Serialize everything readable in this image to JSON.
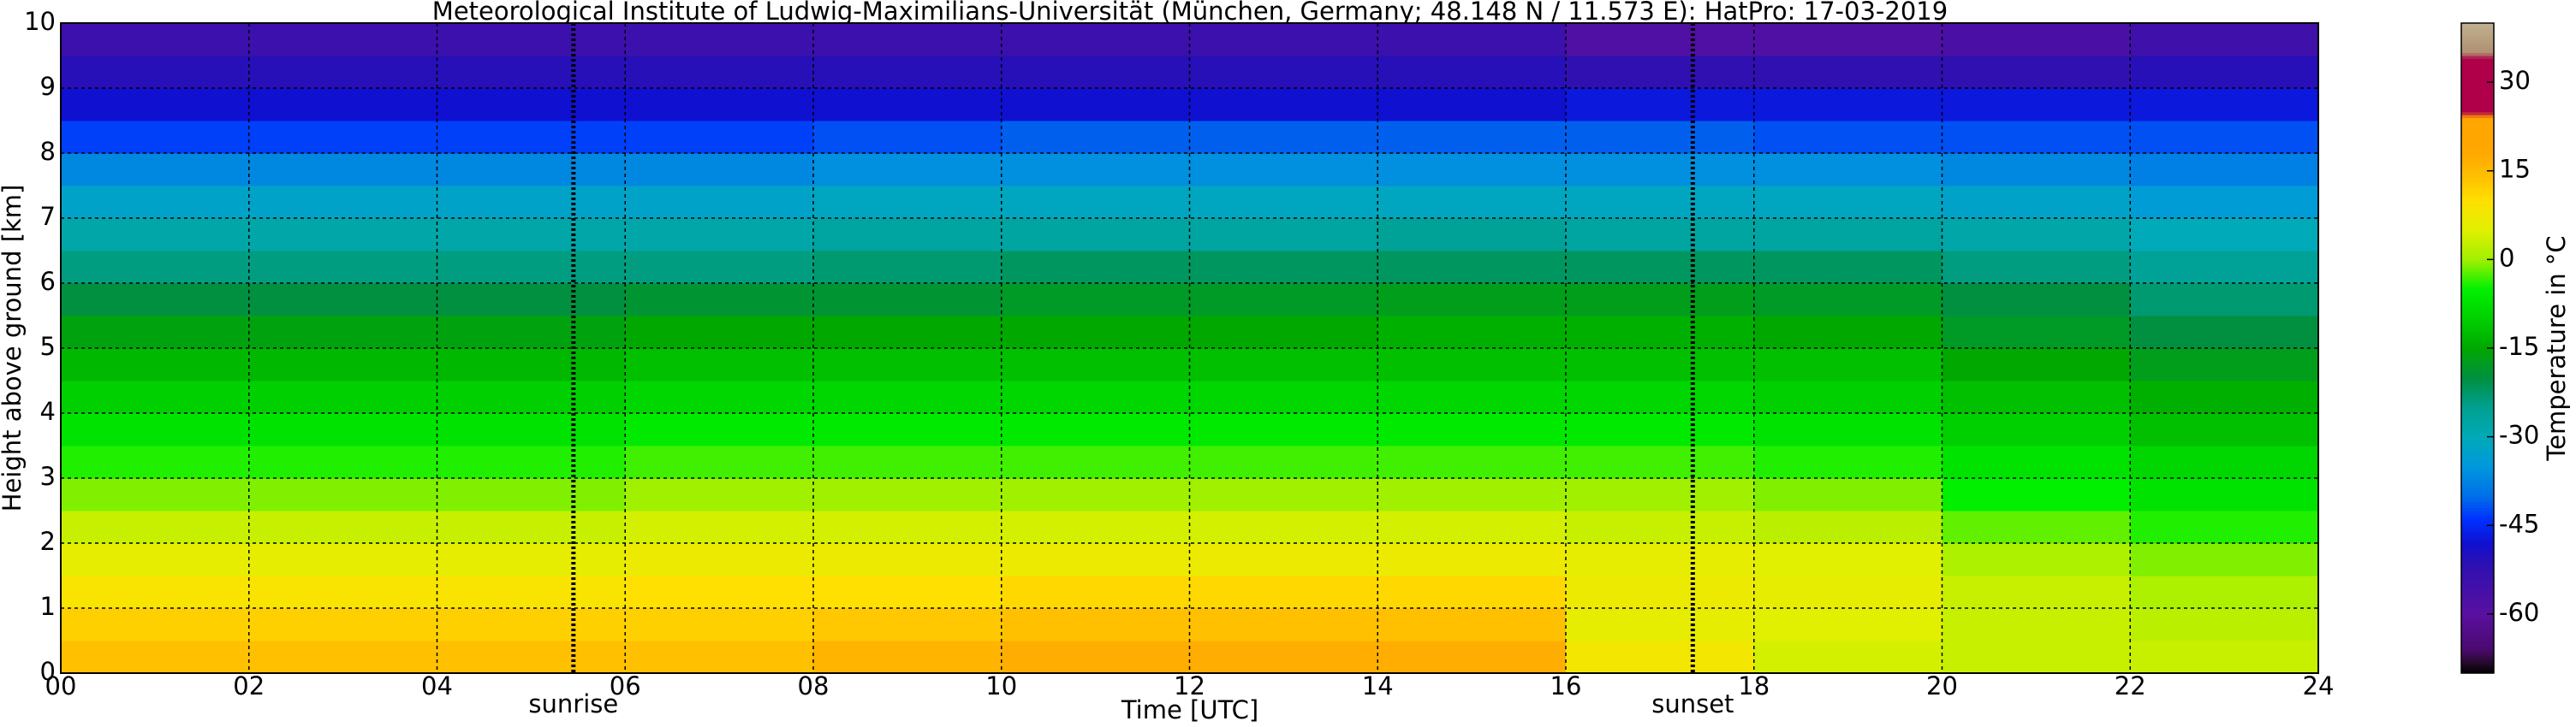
{
  "chart_data": {
    "type": "heatmap",
    "title": "Meteorological Institute of Ludwig-Maximilians-Universität (München, Germany; 48.148 N / 11.573 E):    HatPro: 17-03-2019",
    "xlabel": "Time [UTC]",
    "ylabel": "Height above ground [km]",
    "colorbar_label": "Temperature in °C",
    "x": [
      0,
      2,
      4,
      6,
      8,
      10,
      12,
      14,
      16,
      18,
      20,
      22,
      24
    ],
    "y": [
      0,
      0.5,
      1,
      1.5,
      2,
      2.5,
      3,
      3.5,
      4,
      4.5,
      5,
      5.5,
      6,
      6.5,
      7,
      7.5,
      8,
      8.5,
      9,
      9.5,
      10
    ],
    "z": [
      [
        14,
        12,
        9,
        6,
        3,
        -1,
        -4,
        -7,
        -10,
        -13,
        -16,
        -20,
        -24,
        -28,
        -32,
        -37,
        -43,
        -48,
        -51,
        -54
      ],
      [
        14,
        12,
        9,
        6,
        3,
        -1,
        -4,
        -7,
        -10,
        -13,
        -16,
        -20,
        -24,
        -28,
        -32,
        -37,
        -43,
        -48,
        -51,
        -54
      ],
      [
        14,
        12,
        9,
        6,
        3,
        -1,
        -4,
        -7,
        -10,
        -13,
        -16,
        -20,
        -24,
        -28,
        -32,
        -37,
        -43,
        -48,
        -51,
        -54
      ],
      [
        14,
        12,
        10,
        7,
        4,
        0,
        -3,
        -6,
        -9,
        -12,
        -15,
        -19,
        -24,
        -28,
        -32,
        -37,
        -43,
        -48,
        -51,
        -54
      ],
      [
        16,
        13,
        10,
        7,
        4,
        0,
        -3,
        -6,
        -9,
        -12,
        -15,
        -19,
        -23,
        -27,
        -31,
        -36,
        -42,
        -48,
        -51,
        -54
      ],
      [
        17,
        14,
        11,
        7,
        4,
        0,
        -3,
        -6,
        -9,
        -12,
        -15,
        -18,
        -22,
        -27,
        -31,
        -36,
        -41,
        -48,
        -51,
        -54
      ],
      [
        17,
        14,
        11,
        7,
        4,
        0,
        -3,
        -6,
        -9,
        -12,
        -15,
        -18,
        -22,
        -27,
        -31,
        -36,
        -41,
        -48,
        -51,
        -54
      ],
      [
        17,
        14,
        11,
        7,
        4,
        0,
        -3,
        -6,
        -9,
        -12,
        -14,
        -17,
        -22,
        -26,
        -31,
        -36,
        -41,
        -48,
        -51,
        -54
      ],
      [
        8,
        6,
        7,
        6,
        3,
        0,
        -3,
        -6,
        -9,
        -12,
        -14,
        -17,
        -22,
        -27,
        -31,
        -36,
        -41,
        -47,
        -52,
        -58
      ],
      [
        4,
        5,
        6,
        5,
        2,
        -1,
        -4,
        -7,
        -10,
        -12,
        -15,
        -18,
        -22,
        -27,
        -31,
        -36,
        -42,
        -47,
        -52,
        -58
      ],
      [
        3,
        3,
        3,
        1,
        -2,
        -5,
        -7,
        -10,
        -12,
        -15,
        -18,
        -20,
        -24,
        -28,
        -32,
        -37,
        -42,
        -47,
        -52,
        -57
      ],
      [
        3,
        2,
        1,
        -1,
        -4,
        -7,
        -9,
        -12,
        -14,
        -17,
        -20,
        -23,
        -26,
        -30,
        -34,
        -38,
        -42,
        -47,
        -51,
        -55
      ]
    ],
    "xlim": [
      0,
      24
    ],
    "ylim": [
      0,
      10
    ],
    "xticks": [
      {
        "value": 0,
        "label": "00"
      },
      {
        "value": 2,
        "label": "02"
      },
      {
        "value": 4,
        "label": "04"
      },
      {
        "value": 6,
        "label": "06"
      },
      {
        "value": 8,
        "label": "08"
      },
      {
        "value": 10,
        "label": "10"
      },
      {
        "value": 12,
        "label": "12"
      },
      {
        "value": 14,
        "label": "14"
      },
      {
        "value": 16,
        "label": "16"
      },
      {
        "value": 18,
        "label": "18"
      },
      {
        "value": 20,
        "label": "20"
      },
      {
        "value": 22,
        "label": "22"
      },
      {
        "value": 24,
        "label": "24"
      }
    ],
    "yticks": [
      0,
      1,
      2,
      3,
      4,
      5,
      6,
      7,
      8,
      9,
      10
    ],
    "clim": [
      -70,
      40
    ],
    "cticks": [
      30,
      15,
      0,
      -15,
      -30,
      -45,
      -60
    ],
    "grid": true,
    "colormap": [
      [
        -70,
        "#000000"
      ],
      [
        -68,
        "#2a0a30"
      ],
      [
        -66,
        "#4a0a70"
      ],
      [
        -60,
        "#5a10a0"
      ],
      [
        -52,
        "#3010b0"
      ],
      [
        -48,
        "#1010d0"
      ],
      [
        -44,
        "#0030ff"
      ],
      [
        -40,
        "#0070e8"
      ],
      [
        -35,
        "#0098dd"
      ],
      [
        -30,
        "#00aab8"
      ],
      [
        -25,
        "#00a090"
      ],
      [
        -20,
        "#009040"
      ],
      [
        -15,
        "#00a800"
      ],
      [
        -10,
        "#00d000"
      ],
      [
        -5,
        "#00f000"
      ],
      [
        0,
        "#a0f000"
      ],
      [
        5,
        "#e0f000"
      ],
      [
        10,
        "#ffe000"
      ],
      [
        14,
        "#ffc000"
      ],
      [
        18,
        "#ffa800"
      ],
      [
        24,
        "#ffa500"
      ],
      [
        25,
        "#b0004a"
      ],
      [
        34,
        "#b0004a"
      ],
      [
        35,
        "#b09070"
      ],
      [
        40,
        "#c0b090"
      ]
    ],
    "annotations": [
      {
        "text": "sunrise",
        "x": 5.45
      },
      {
        "text": "sunset",
        "x": 17.35
      }
    ]
  }
}
